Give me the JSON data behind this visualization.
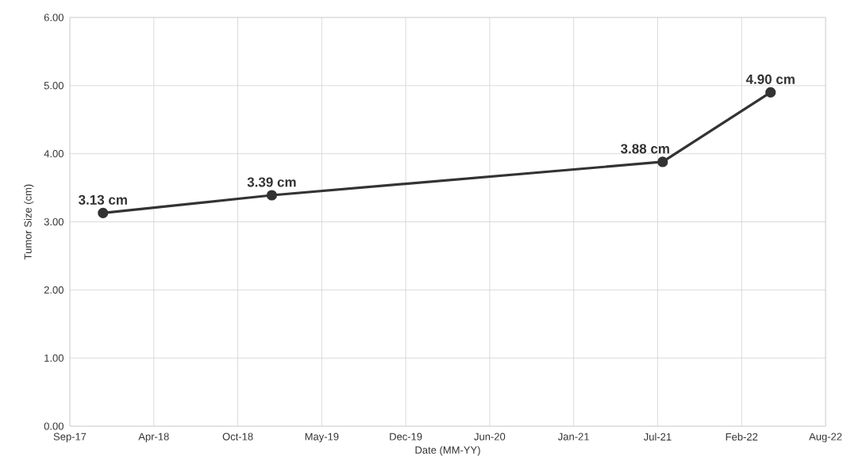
{
  "chart_data": {
    "type": "line",
    "xlabel": "Date (MM-YY)",
    "ylabel": "Tumor Size (cm)",
    "x": [
      "2017-12-13",
      "2019-01-19",
      "2021-08-07",
      "2022-04-21"
    ],
    "series": [
      {
        "color": "#333333",
        "values": [
          3.13,
          3.39,
          3.88,
          4.9
        ],
        "value_labels": [
          "3.13 cm",
          "3.39 cm",
          "3.88 cm",
          "4.90 cm"
        ]
      }
    ],
    "xlim": [
      "2017-09-25",
      "2022-08-30"
    ],
    "xticks": [
      {
        "value": "2017-09-25",
        "label": "Sep-17"
      },
      {
        "value": "2018-04-13",
        "label": "Apr-18"
      },
      {
        "value": "2018-10-30",
        "label": "Oct-18"
      },
      {
        "value": "2019-05-18",
        "label": "May-19"
      },
      {
        "value": "2019-12-04",
        "label": "Dec-19"
      },
      {
        "value": "2020-06-21",
        "label": "Jun-20"
      },
      {
        "value": "2021-01-07",
        "label": "Jan-21"
      },
      {
        "value": "2021-07-26",
        "label": "Jul-21"
      },
      {
        "value": "2022-02-11",
        "label": "Feb-22"
      },
      {
        "value": "2022-08-30",
        "label": "Aug-22"
      }
    ],
    "ylim": [
      0,
      6
    ],
    "yticks": [
      {
        "value": 0,
        "label": "0.00"
      },
      {
        "value": 1,
        "label": "1.00"
      },
      {
        "value": 2,
        "label": "2.00"
      },
      {
        "value": 3,
        "label": "3.00"
      },
      {
        "value": 4,
        "label": "4.00"
      },
      {
        "value": 5,
        "label": "5.00"
      },
      {
        "value": 6,
        "label": "6.00"
      }
    ],
    "grid": true,
    "marker": "circle",
    "line_style": "solid"
  }
}
